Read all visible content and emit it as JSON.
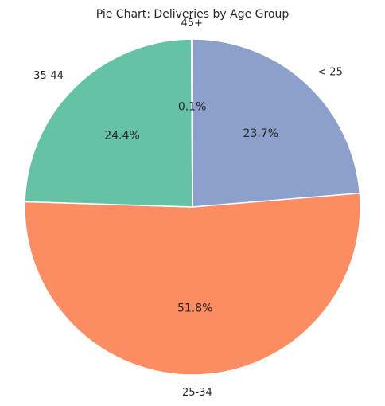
{
  "chart_data": {
    "type": "pie",
    "title": "Pie Chart: Deliveries by Age Group",
    "slices": [
      {
        "label": "< 25",
        "percent": 23.7,
        "percent_label": "23.7%",
        "color": "#8da0cb"
      },
      {
        "label": "25-34",
        "percent": 51.8,
        "percent_label": "51.8%",
        "color": "#fc8d62"
      },
      {
        "label": "35-44",
        "percent": 24.4,
        "percent_label": "24.4%",
        "color": "#66c2a5"
      },
      {
        "label": "45+",
        "percent": 0.1,
        "percent_label": "0.1%",
        "color": "#e78ac3"
      }
    ],
    "start_angle": 90,
    "direction": "clockwise",
    "legend": "none",
    "edge_color": "#ffffff"
  }
}
